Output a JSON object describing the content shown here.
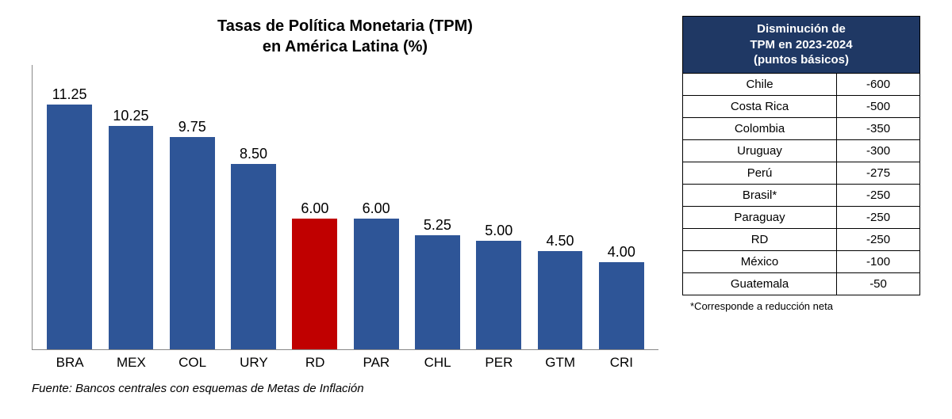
{
  "chart": {
    "type": "bar",
    "title_line1": "Tasas de Política Monetaria (TPM)",
    "title_line2": "en América Latina (%)",
    "title_fontsize": 20,
    "title_color": "#000000",
    "categories": [
      "BRA",
      "MEX",
      "COL",
      "URY",
      "RD",
      "PAR",
      "CHL",
      "PER",
      "GTM",
      "CRI"
    ],
    "values": [
      11.25,
      10.25,
      9.75,
      8.5,
      6.0,
      6.0,
      5.25,
      5.0,
      4.5,
      4.0
    ],
    "value_labels": [
      "11.25",
      "10.25",
      "9.75",
      "8.50",
      "6.00",
      "6.00",
      "5.25",
      "5.00",
      "4.50",
      "4.00"
    ],
    "bar_colors": [
      "#2e5597",
      "#2e5597",
      "#2e5597",
      "#2e5597",
      "#c00000",
      "#2e5597",
      "#2e5597",
      "#2e5597",
      "#2e5597",
      "#2e5597"
    ],
    "ylim": [
      0,
      12
    ],
    "background_color": "#ffffff",
    "axis_color": "#888888",
    "bar_width_ratio": 0.82,
    "label_fontsize": 18,
    "tick_fontsize": 17
  },
  "source": "Fuente: Bancos centrales con esquemas de Metas de Inflación",
  "table": {
    "header_line1": "Disminución de",
    "header_line2": "TPM en 2023-2024",
    "header_line3": "(puntos básicos)",
    "header_bg": "#1f3864",
    "header_fg": "#ffffff",
    "border_color": "#000000",
    "cell_bg": "#ffffff",
    "cell_fontsize": 15,
    "rows": [
      {
        "country": "Chile",
        "value": "-600"
      },
      {
        "country": "Costa Rica",
        "value": "-500"
      },
      {
        "country": "Colombia",
        "value": "-350"
      },
      {
        "country": "Uruguay",
        "value": "-300"
      },
      {
        "country": "Perú",
        "value": "-275"
      },
      {
        "country": "Brasil*",
        "value": "-250"
      },
      {
        "country": "Paraguay",
        "value": "-250"
      },
      {
        "country": "RD",
        "value": "-250"
      },
      {
        "country": "México",
        "value": "-100"
      },
      {
        "country": "Guatemala",
        "value": "-50"
      }
    ],
    "note": "*Corresponde a reducción neta"
  }
}
